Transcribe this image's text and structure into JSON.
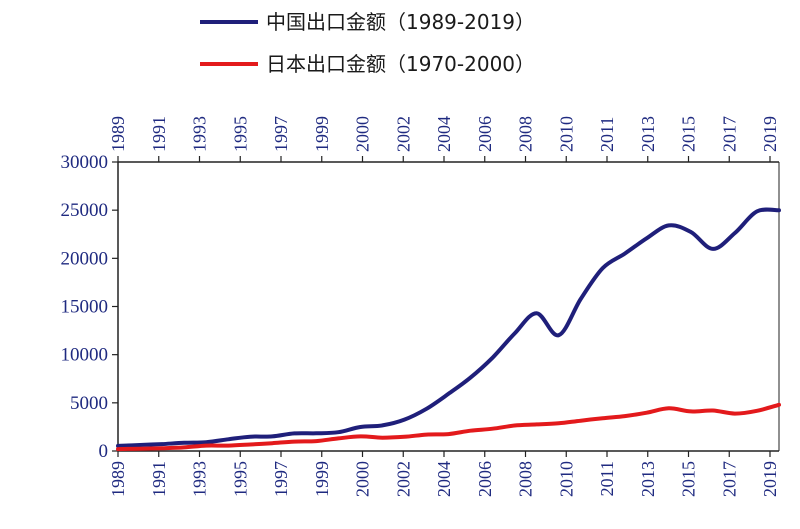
{
  "chart_data": {
    "type": "line",
    "title": "",
    "ylim": [
      0,
      30000
    ],
    "y_ticks": [
      "0",
      "5000",
      "10000",
      "15000",
      "20000",
      "25000",
      "30000"
    ],
    "x_top_ticks": [
      "1989",
      "1991",
      "1993",
      "1995",
      "1997",
      "1999",
      "2000",
      "2002",
      "2004",
      "2006",
      "2008",
      "2010",
      "2011",
      "2013",
      "2015",
      "2017",
      "2019"
    ],
    "x_bottom_ticks": [
      "1989",
      "1991",
      "1993",
      "1995",
      "1997",
      "1999",
      "2000",
      "2002",
      "2004",
      "2006",
      "2008",
      "2010",
      "2011",
      "2013",
      "2015",
      "2017",
      "2019"
    ],
    "grid": false,
    "legend_position": "top",
    "series": [
      {
        "name": "中国出口金额（1989-2019）",
        "color": "#1f1f7a",
        "values": [
          525,
          621,
          719,
          849,
          917,
          1210,
          1488,
          1511,
          1828,
          1837,
          1949,
          2492,
          2661,
          3256,
          4382,
          5933,
          7620,
          9690,
          12201,
          14307,
          12016,
          15778,
          18984,
          20487,
          22090,
          23423,
          22735,
          20976,
          22633,
          24867,
          24990
        ]
      },
      {
        "name": "日本出口金额（1970-2000）",
        "color": "#e31a1c",
        "values": [
          193,
          240,
          287,
          370,
          557,
          558,
          675,
          813,
          980,
          1032,
          1305,
          1519,
          1384,
          1470,
          1700,
          1758,
          2107,
          2311,
          2649,
          2758,
          2877,
          3149,
          3399,
          3621,
          3975,
          4432,
          4107,
          4202,
          3883,
          4171,
          4792
        ]
      }
    ]
  }
}
